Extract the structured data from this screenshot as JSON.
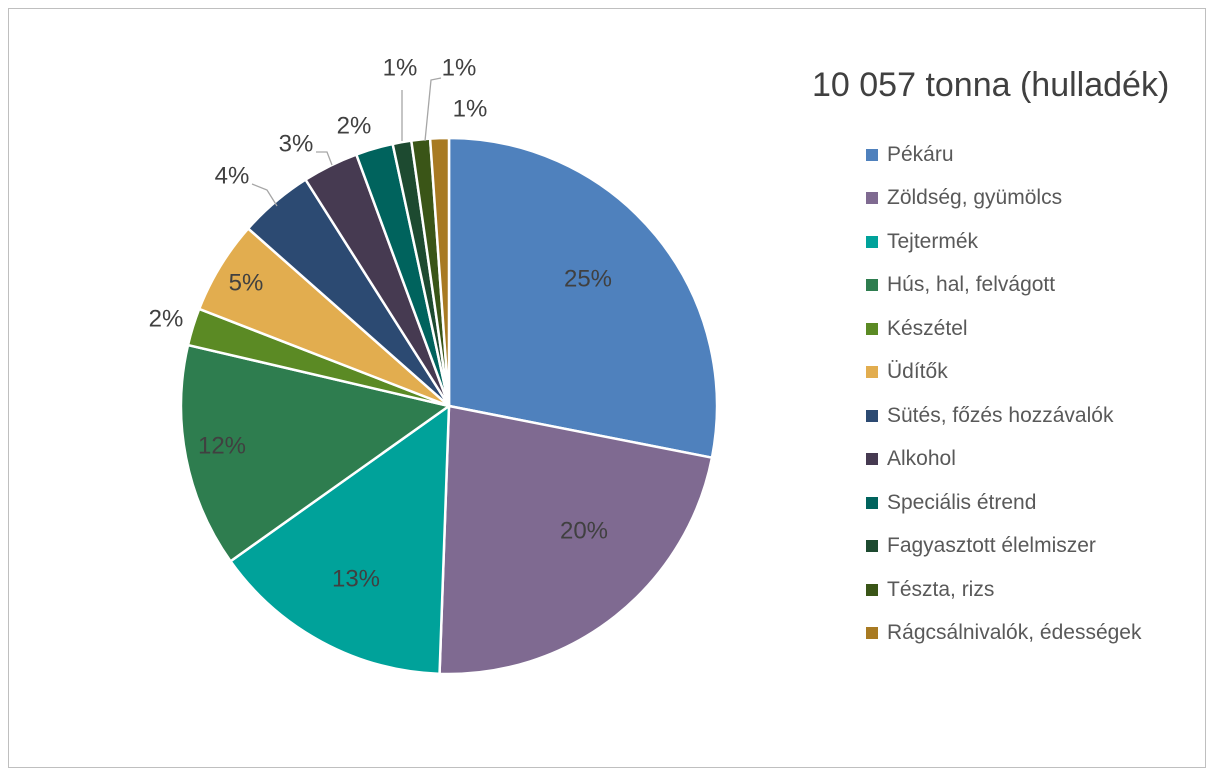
{
  "chart_data": {
    "type": "pie",
    "title": "10 057 tonna (hulladék)",
    "legend_position": "right",
    "slices": [
      {
        "label": "Pékáru",
        "value": 25,
        "display": "25%",
        "color": "#4f81bd"
      },
      {
        "label": "Zöldség, gyümölcs",
        "value": 20,
        "display": "20%",
        "color": "#7f6a91"
      },
      {
        "label": "Tejtermék",
        "value": 13,
        "display": "13%",
        "color": "#00a29a"
      },
      {
        "label": "Hús, hal, felvágott",
        "value": 12,
        "display": "12%",
        "color": "#2e7d4f"
      },
      {
        "label": "Készétel",
        "value": 2,
        "display": "2%",
        "color": "#5b8a24"
      },
      {
        "label": "Üdítők",
        "value": 5,
        "display": "5%",
        "color": "#e2ad4f"
      },
      {
        "label": "Sütés, főzés hozzávalók",
        "value": 4,
        "display": "4%",
        "color": "#2c4a72"
      },
      {
        "label": "Alkohol",
        "value": 3,
        "display": "3%",
        "color": "#463a51"
      },
      {
        "label": "Speciális étrend",
        "value": 2,
        "display": "2%",
        "color": "#00635d"
      },
      {
        "label": "Fagyasztott élelmiszer",
        "value": 1,
        "display": "1%",
        "color": "#1d4a30"
      },
      {
        "label": "Tészta, rizs",
        "value": 1,
        "display": "1%",
        "color": "#3a5517"
      },
      {
        "label": "Rágcsálnivalók, édességek",
        "value": 1,
        "display": "1%",
        "color": "#a87a22"
      }
    ]
  }
}
